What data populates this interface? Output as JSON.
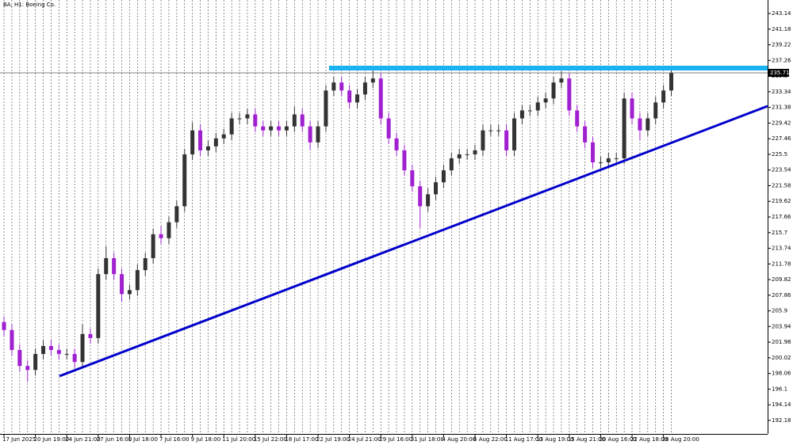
{
  "chart_data": {
    "type": "candlestick",
    "title": "BA, H1: Boeing Co.",
    "bull_color": "#333333",
    "bear_color": "#a020d0",
    "xlim": [
      -0.51,
      97.27
    ],
    "ylim": [
      190.49,
      244.83
    ],
    "yticks": [
      192.18,
      194.14,
      196.1,
      198.06,
      200.02,
      201.98,
      203.94,
      205.9,
      207.86,
      209.82,
      211.78,
      213.74,
      215.7,
      217.66,
      219.62,
      221.58,
      223.54,
      225.5,
      227.46,
      229.42,
      231.38,
      233.34,
      235.3,
      237.26,
      239.22,
      241.18,
      243.14
    ],
    "xticks": [
      {
        "value": 0,
        "label": "17 Jun 2025"
      },
      {
        "value": 4,
        "label": "20 Jun 19:00"
      },
      {
        "value": 8,
        "label": "24 Jun 21:00"
      },
      {
        "value": 12,
        "label": "27 Jun 16:00"
      },
      {
        "value": 16,
        "label": "1 Jul 18:00"
      },
      {
        "value": 20,
        "label": "7 Jul 16:00"
      },
      {
        "value": 24,
        "label": "9 Jul 18:00"
      },
      {
        "value": 28,
        "label": "11 Jul 20:00"
      },
      {
        "value": 32,
        "label": "15 Jul 22:00"
      },
      {
        "value": 36,
        "label": "18 Jul 17:00"
      },
      {
        "value": 40,
        "label": "22 Jul 19:00"
      },
      {
        "value": 44,
        "label": "24 Jul 21:00"
      },
      {
        "value": 48,
        "label": "29 Jul 16:00"
      },
      {
        "value": 52,
        "label": "31 Jul 18:00"
      },
      {
        "value": 56,
        "label": "4 Aug 20:00"
      },
      {
        "value": 60,
        "label": "6 Aug 22:00"
      },
      {
        "value": 64,
        "label": "11 Aug 17:00"
      },
      {
        "value": 68,
        "label": "13 Aug 19:00"
      },
      {
        "value": 72,
        "label": "15 Aug 21:00"
      },
      {
        "value": 76,
        "label": "20 Aug 16:00"
      },
      {
        "value": 80,
        "label": "22 Aug 18:00"
      },
      {
        "value": 84,
        "label": "26 Aug 20:00"
      }
    ],
    "last_price": 235.71,
    "trendlines": [
      {
        "color": "#0000cc",
        "x": [
          7.07,
          97.27
        ],
        "y": [
          197.73,
          231.54
        ]
      },
      {
        "color": "#1ab2f0",
        "x": [
          41.4,
          97.27
        ],
        "y": [
          236.3,
          236.3
        ]
      }
    ],
    "candles": [
      [
        204.5,
        205.2,
        202.8,
        203.5
      ],
      [
        203.5,
        204.2,
        200.3,
        201
      ],
      [
        201,
        201.7,
        198.3,
        199
      ],
      [
        199,
        199.7,
        197,
        198.5
      ],
      [
        198.5,
        201.2,
        197.8,
        200.5
      ],
      [
        200.5,
        202.2,
        199.8,
        201.5
      ],
      [
        201.5,
        202.2,
        200.3,
        201
      ],
      [
        201,
        201.7,
        199.8,
        200.5
      ],
      [
        200.5,
        201.2,
        199.8,
        200.5
      ],
      [
        200.5,
        201.2,
        198.8,
        199.5
      ],
      [
        199.5,
        204.2,
        198.8,
        203
      ],
      [
        203,
        203.7,
        201.8,
        202.5
      ],
      [
        202.5,
        211.2,
        201.8,
        210.5
      ],
      [
        210.5,
        214,
        209.8,
        212.5
      ],
      [
        212.5,
        213.2,
        209.8,
        210.5
      ],
      [
        210.5,
        211.2,
        207,
        208
      ],
      [
        208,
        209.2,
        207.3,
        208.5
      ],
      [
        208.5,
        211.7,
        207.8,
        211
      ],
      [
        211,
        213.2,
        210.3,
        212.5
      ],
      [
        212.5,
        216.2,
        211.8,
        215.5
      ],
      [
        215.5,
        216.5,
        214.3,
        215
      ],
      [
        215,
        217.7,
        214.3,
        217
      ],
      [
        217,
        219.7,
        216.3,
        219
      ],
      [
        219,
        226.2,
        218.3,
        225.5
      ],
      [
        225.5,
        229.5,
        224.8,
        228.5
      ],
      [
        228.5,
        229.2,
        225.3,
        226
      ],
      [
        226,
        227.2,
        225.3,
        226.5
      ],
      [
        226.5,
        228.2,
        225.8,
        227.5
      ],
      [
        227.5,
        228.7,
        226.8,
        228
      ],
      [
        228,
        230.7,
        227.3,
        230
      ],
      [
        230,
        230.7,
        229.3,
        230
      ],
      [
        230,
        231.2,
        229.3,
        230.5
      ],
      [
        230.5,
        231.2,
        228.3,
        229
      ],
      [
        229,
        229.7,
        227.8,
        228.5
      ],
      [
        228.5,
        229.7,
        227.8,
        229
      ],
      [
        229,
        229.7,
        227.8,
        228.5
      ],
      [
        228.5,
        229.7,
        227.8,
        229
      ],
      [
        229,
        231.5,
        228.3,
        230.5
      ],
      [
        230.5,
        231.2,
        228.3,
        229
      ],
      [
        229,
        229.7,
        226,
        227
      ],
      [
        227,
        229.7,
        226.3,
        229
      ],
      [
        229,
        234.2,
        228.3,
        233.5
      ],
      [
        233.5,
        235.2,
        232.8,
        234.5
      ],
      [
        234.5,
        235.2,
        232.8,
        233.5
      ],
      [
        233.5,
        234.2,
        231.3,
        232
      ],
      [
        232,
        233.7,
        231.3,
        233
      ],
      [
        233,
        235.2,
        232.3,
        234.5
      ],
      [
        234.5,
        236.2,
        233.8,
        235
      ],
      [
        235,
        235.7,
        229.3,
        230
      ],
      [
        230,
        230.7,
        226.8,
        227.5
      ],
      [
        227.5,
        228.2,
        225.3,
        226
      ],
      [
        226,
        226.7,
        222.8,
        223.5
      ],
      [
        223.5,
        224.2,
        220.8,
        221.5
      ],
      [
        221.5,
        222.2,
        216.3,
        219
      ],
      [
        219,
        221.2,
        218.3,
        220.5
      ],
      [
        220.5,
        222.7,
        219.8,
        222
      ],
      [
        222,
        224.2,
        221.3,
        223.5
      ],
      [
        223.5,
        225.7,
        222.8,
        225
      ],
      [
        225,
        226.2,
        224.3,
        225.5
      ],
      [
        225.5,
        226.2,
        224.8,
        225.5
      ],
      [
        225.5,
        226.7,
        224.8,
        226
      ],
      [
        226,
        229.2,
        225.3,
        228.5
      ],
      [
        228.5,
        229.2,
        227.8,
        228.5
      ],
      [
        228.5,
        229.2,
        227.8,
        228.5
      ],
      [
        228.5,
        229.2,
        225.3,
        226
      ],
      [
        226,
        230.7,
        225.3,
        230
      ],
      [
        230,
        231.7,
        229.3,
        231
      ],
      [
        231,
        231.7,
        230.3,
        231
      ],
      [
        231,
        232.7,
        230.3,
        232
      ],
      [
        232,
        233.2,
        231.3,
        232.5
      ],
      [
        232.5,
        235.2,
        231.8,
        234.5
      ],
      [
        234.5,
        235.9,
        233.8,
        235
      ],
      [
        235,
        235.7,
        230.3,
        231
      ],
      [
        231,
        231.7,
        228.3,
        229
      ],
      [
        229,
        229.7,
        226.3,
        227
      ],
      [
        227,
        227.7,
        223.8,
        224.5
      ],
      [
        224.5,
        225.2,
        223.8,
        224.5
      ],
      [
        224.5,
        225.7,
        223.8,
        225
      ],
      [
        225,
        225.7,
        224.3,
        225
      ],
      [
        225,
        233.2,
        224.3,
        232.5
      ],
      [
        232.5,
        233.2,
        229.3,
        230
      ],
      [
        230,
        230.7,
        227.3,
        228.5
      ],
      [
        228.5,
        230.7,
        227.8,
        230
      ],
      [
        230,
        232.7,
        229.3,
        232
      ],
      [
        232,
        234.2,
        231.3,
        233.5
      ],
      [
        233.5,
        236.3,
        232.8,
        235.71
      ]
    ]
  }
}
